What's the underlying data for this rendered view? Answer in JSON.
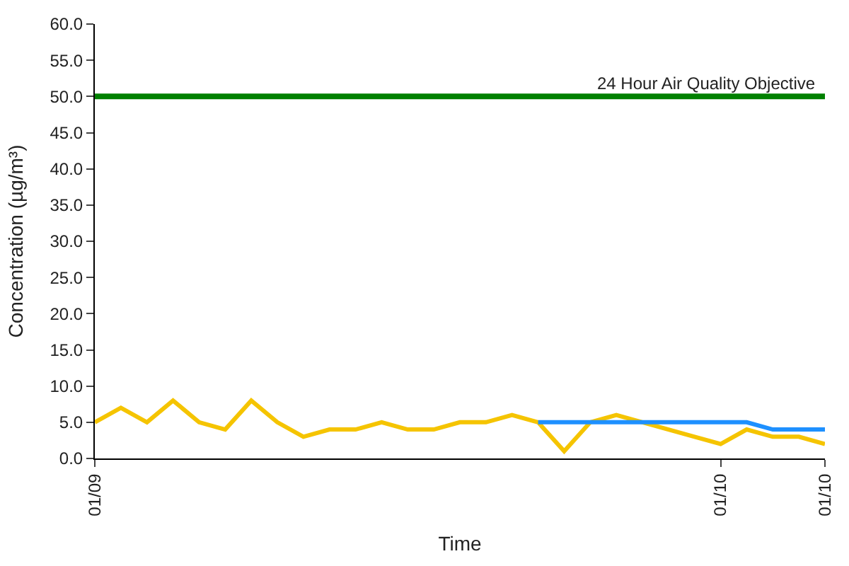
{
  "chart_data": {
    "type": "line",
    "xlabel": "Time",
    "ylabel": "Concentration (µg/m³)",
    "categories": [
      "01/09",
      null,
      null,
      null,
      null,
      null,
      null,
      null,
      null,
      null,
      null,
      null,
      null,
      null,
      null,
      null,
      null,
      null,
      null,
      null,
      null,
      null,
      null,
      null,
      "01/10",
      null,
      null,
      null,
      "01/10"
    ],
    "series": [
      {
        "color": "#f5c400",
        "values": [
          5,
          7,
          5,
          8,
          5,
          4,
          8,
          5,
          3,
          4,
          4,
          5,
          4,
          4,
          5,
          5,
          6,
          5,
          1,
          5,
          6,
          5,
          4,
          3,
          2,
          4,
          3,
          3,
          2
        ]
      },
      {
        "color": "#1e90ff",
        "values": [
          null,
          null,
          null,
          null,
          null,
          null,
          null,
          null,
          null,
          null,
          null,
          null,
          null,
          null,
          null,
          null,
          null,
          5,
          5,
          5,
          5,
          5,
          5,
          5,
          5,
          5,
          4,
          4,
          4
        ]
      }
    ],
    "ylim": [
      0,
      60
    ],
    "yticks": [
      {
        "value": 0,
        "label": "0.0"
      },
      {
        "value": 5,
        "label": "5.0"
      },
      {
        "value": 10,
        "label": "10.0"
      },
      {
        "value": 15,
        "label": "15.0"
      },
      {
        "value": 20,
        "label": "20.0"
      },
      {
        "value": 25,
        "label": "25.0"
      },
      {
        "value": 30,
        "label": "30.0"
      },
      {
        "value": 35,
        "label": "35.0"
      },
      {
        "value": 40,
        "label": "40.0"
      },
      {
        "value": 45,
        "label": "45.0"
      },
      {
        "value": 50,
        "label": "50.0"
      },
      {
        "value": 55,
        "label": "55.0"
      },
      {
        "value": 60,
        "label": "60.0"
      }
    ],
    "ref_lines": [
      {
        "axis": "y",
        "value": 50,
        "label": "24 Hour Air Quality Objective",
        "color": "#008000"
      }
    ],
    "marker": "none",
    "line_style": "solid"
  }
}
